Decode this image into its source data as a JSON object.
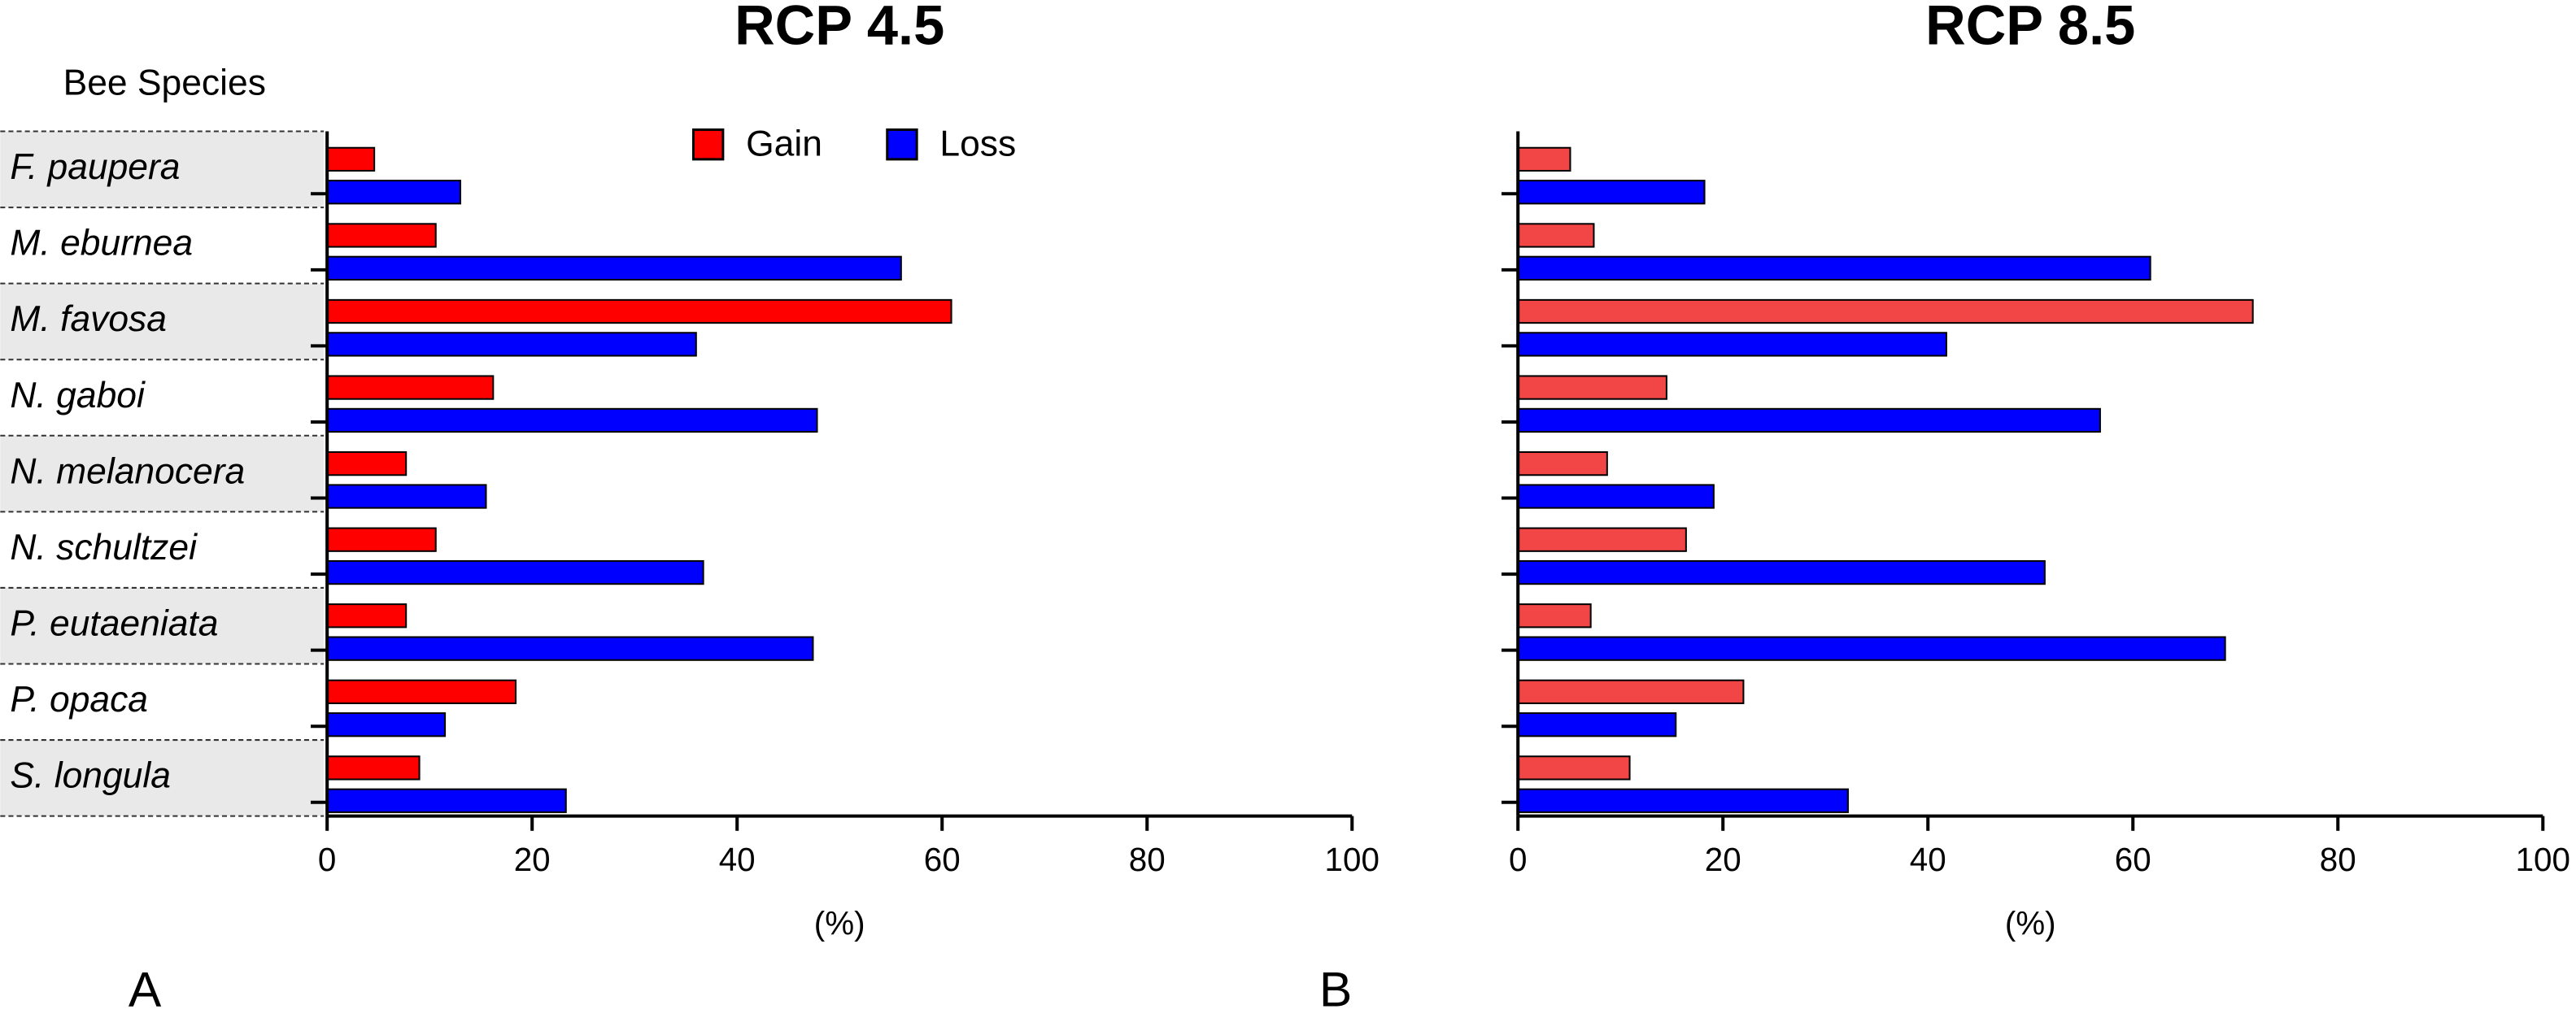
{
  "chart_data": [
    {
      "type": "bar",
      "orientation": "horizontal",
      "title": "RCP 4.5",
      "panel": "A",
      "y_label": "Bee Species",
      "x_label": "(%)",
      "categories": [
        "F. paupera",
        "M. eburnea",
        "M. favosa",
        "N. gaboi",
        "N. melanocera",
        "N. schultzei",
        "P. eutaeniata",
        "P. opaca",
        "S. longula"
      ],
      "series": [
        {
          "name": "Gain",
          "color": "#ff0000",
          "values": [
            4.6,
            10.6,
            60.9,
            16.2,
            7.7,
            10.6,
            7.7,
            18.4,
            9
          ]
        },
        {
          "name": "Loss",
          "color": "#0000ff",
          "values": [
            13,
            56,
            36,
            47.8,
            15.5,
            36.7,
            47.4,
            11.5,
            23.3
          ]
        }
      ],
      "xlim": [
        0,
        100
      ],
      "xticks": [
        0,
        20,
        40,
        60,
        80,
        100
      ],
      "legend": "top"
    },
    {
      "type": "bar",
      "orientation": "horizontal",
      "title": "RCP 8.5",
      "panel": "B",
      "x_label": "(%)",
      "categories": [
        null,
        null,
        null,
        null,
        null,
        null,
        null,
        null,
        null
      ],
      "series": [
        {
          "color": "#f24545",
          "values": [
            5.1,
            7.4,
            71.7,
            14.5,
            8.7,
            16.4,
            7.1,
            22,
            10.9
          ]
        },
        {
          "color": "#0000ff",
          "values": [
            18.2,
            61.7,
            41.8,
            56.8,
            19.1,
            51.4,
            69,
            15.4,
            32.2
          ]
        }
      ],
      "xlim": [
        0,
        100
      ],
      "xticks": [
        0,
        20,
        40,
        60,
        80,
        100
      ]
    }
  ]
}
